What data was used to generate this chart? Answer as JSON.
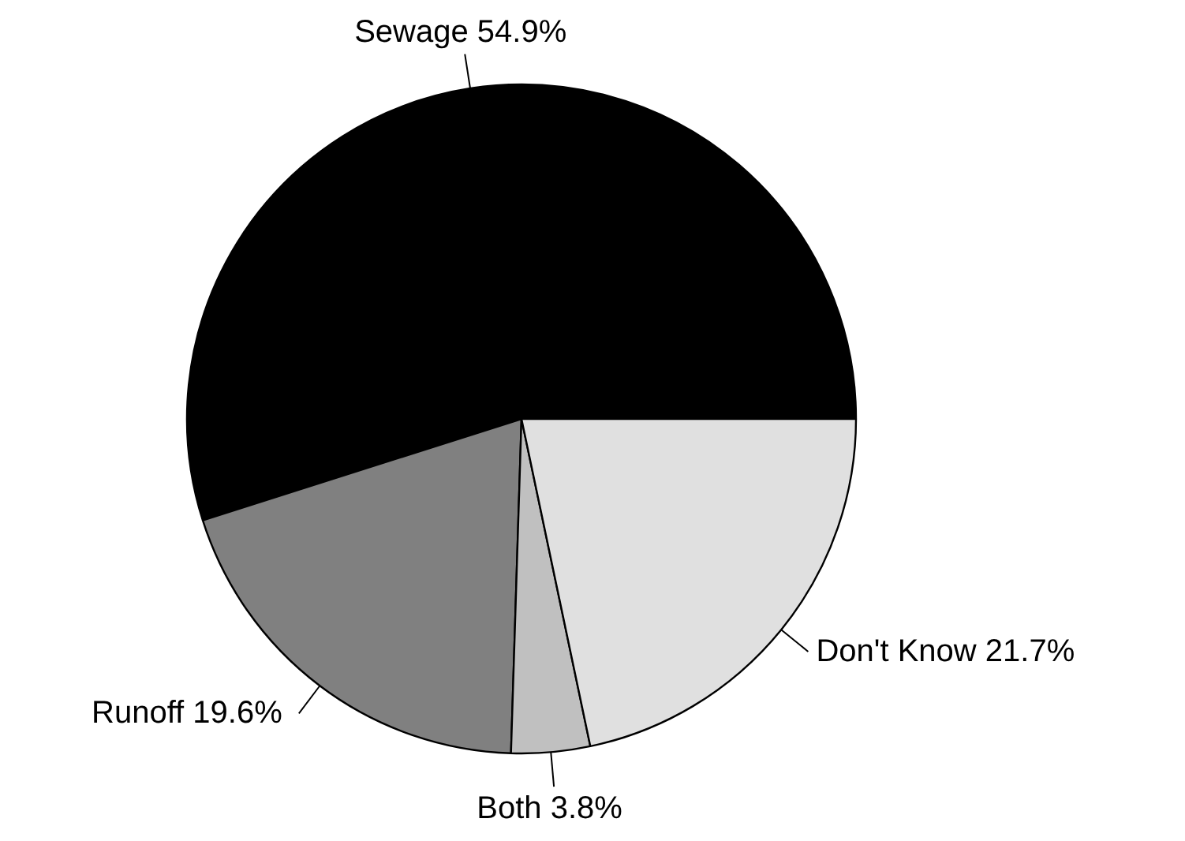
{
  "chart_data": {
    "type": "pie",
    "categories": [
      "Sewage",
      "Runoff",
      "Both",
      "Don't Know"
    ],
    "values": [
      54.9,
      19.6,
      3.8,
      21.7
    ],
    "value_labels": [
      "54.9%",
      "19.6%",
      "3.8%",
      "21.7%"
    ],
    "colors": [
      "#000000",
      "#808080",
      "#c0c0c0",
      "#e0e0e0"
    ]
  }
}
